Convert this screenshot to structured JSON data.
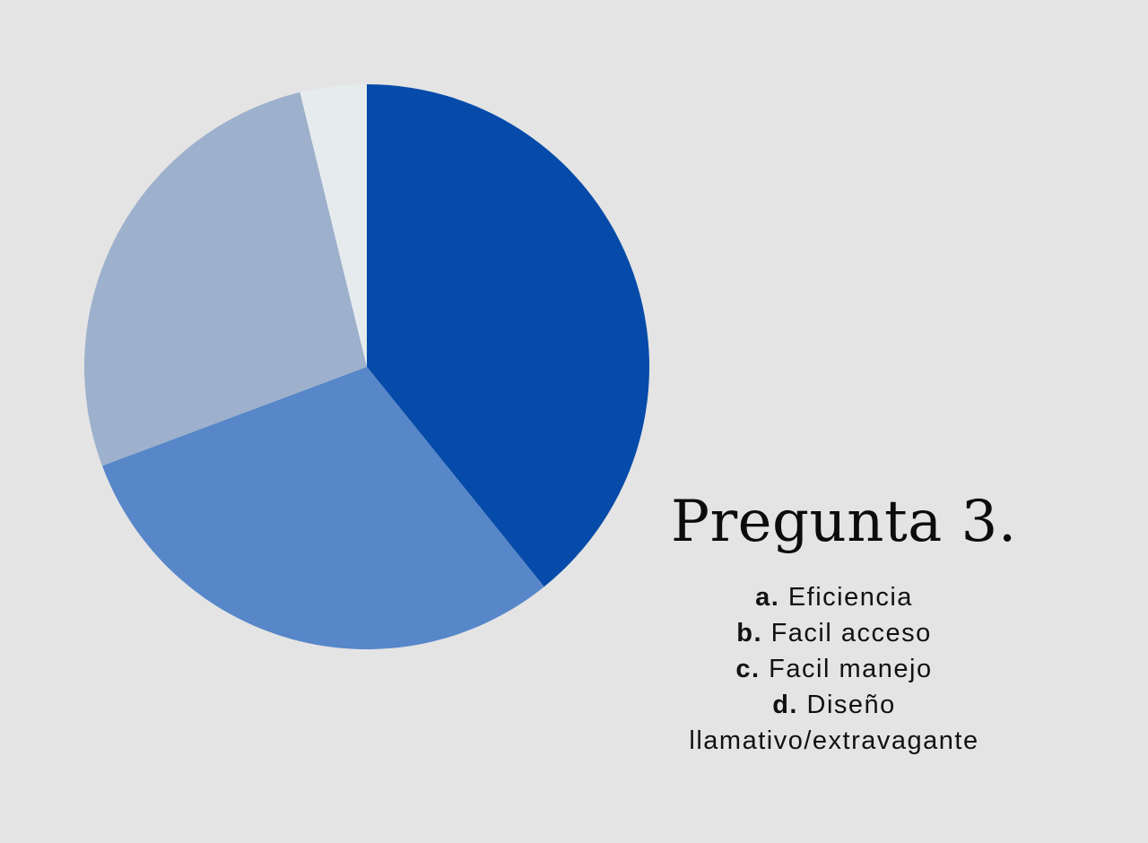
{
  "chart_data": {
    "type": "pie",
    "title": "Pregunta 3.",
    "start_angle_deg": 0,
    "direction": "clockwise",
    "slices": [
      {
        "key": "a.",
        "label": "Eficiencia",
        "value": 39.2,
        "color": "#064ba9"
      },
      {
        "key": "b.",
        "label": "Facil acceso",
        "value": 30.1,
        "color": "#5787c9"
      },
      {
        "key": "c.",
        "label": "Facil manejo",
        "value": 26.9,
        "color": "#9db0cc"
      },
      {
        "key": "d.",
        "label": "Diseño llamativo/extravagante",
        "value": 3.8,
        "color": "#e6ecee"
      }
    ],
    "legend": [
      {
        "key": "a.",
        "text": "Eficiencia"
      },
      {
        "key": "b.",
        "text": "Facil acceso"
      },
      {
        "key": "c.",
        "text": "Facil manejo"
      },
      {
        "key": "d.",
        "text": "Diseño llamativo/extravagante"
      }
    ]
  }
}
